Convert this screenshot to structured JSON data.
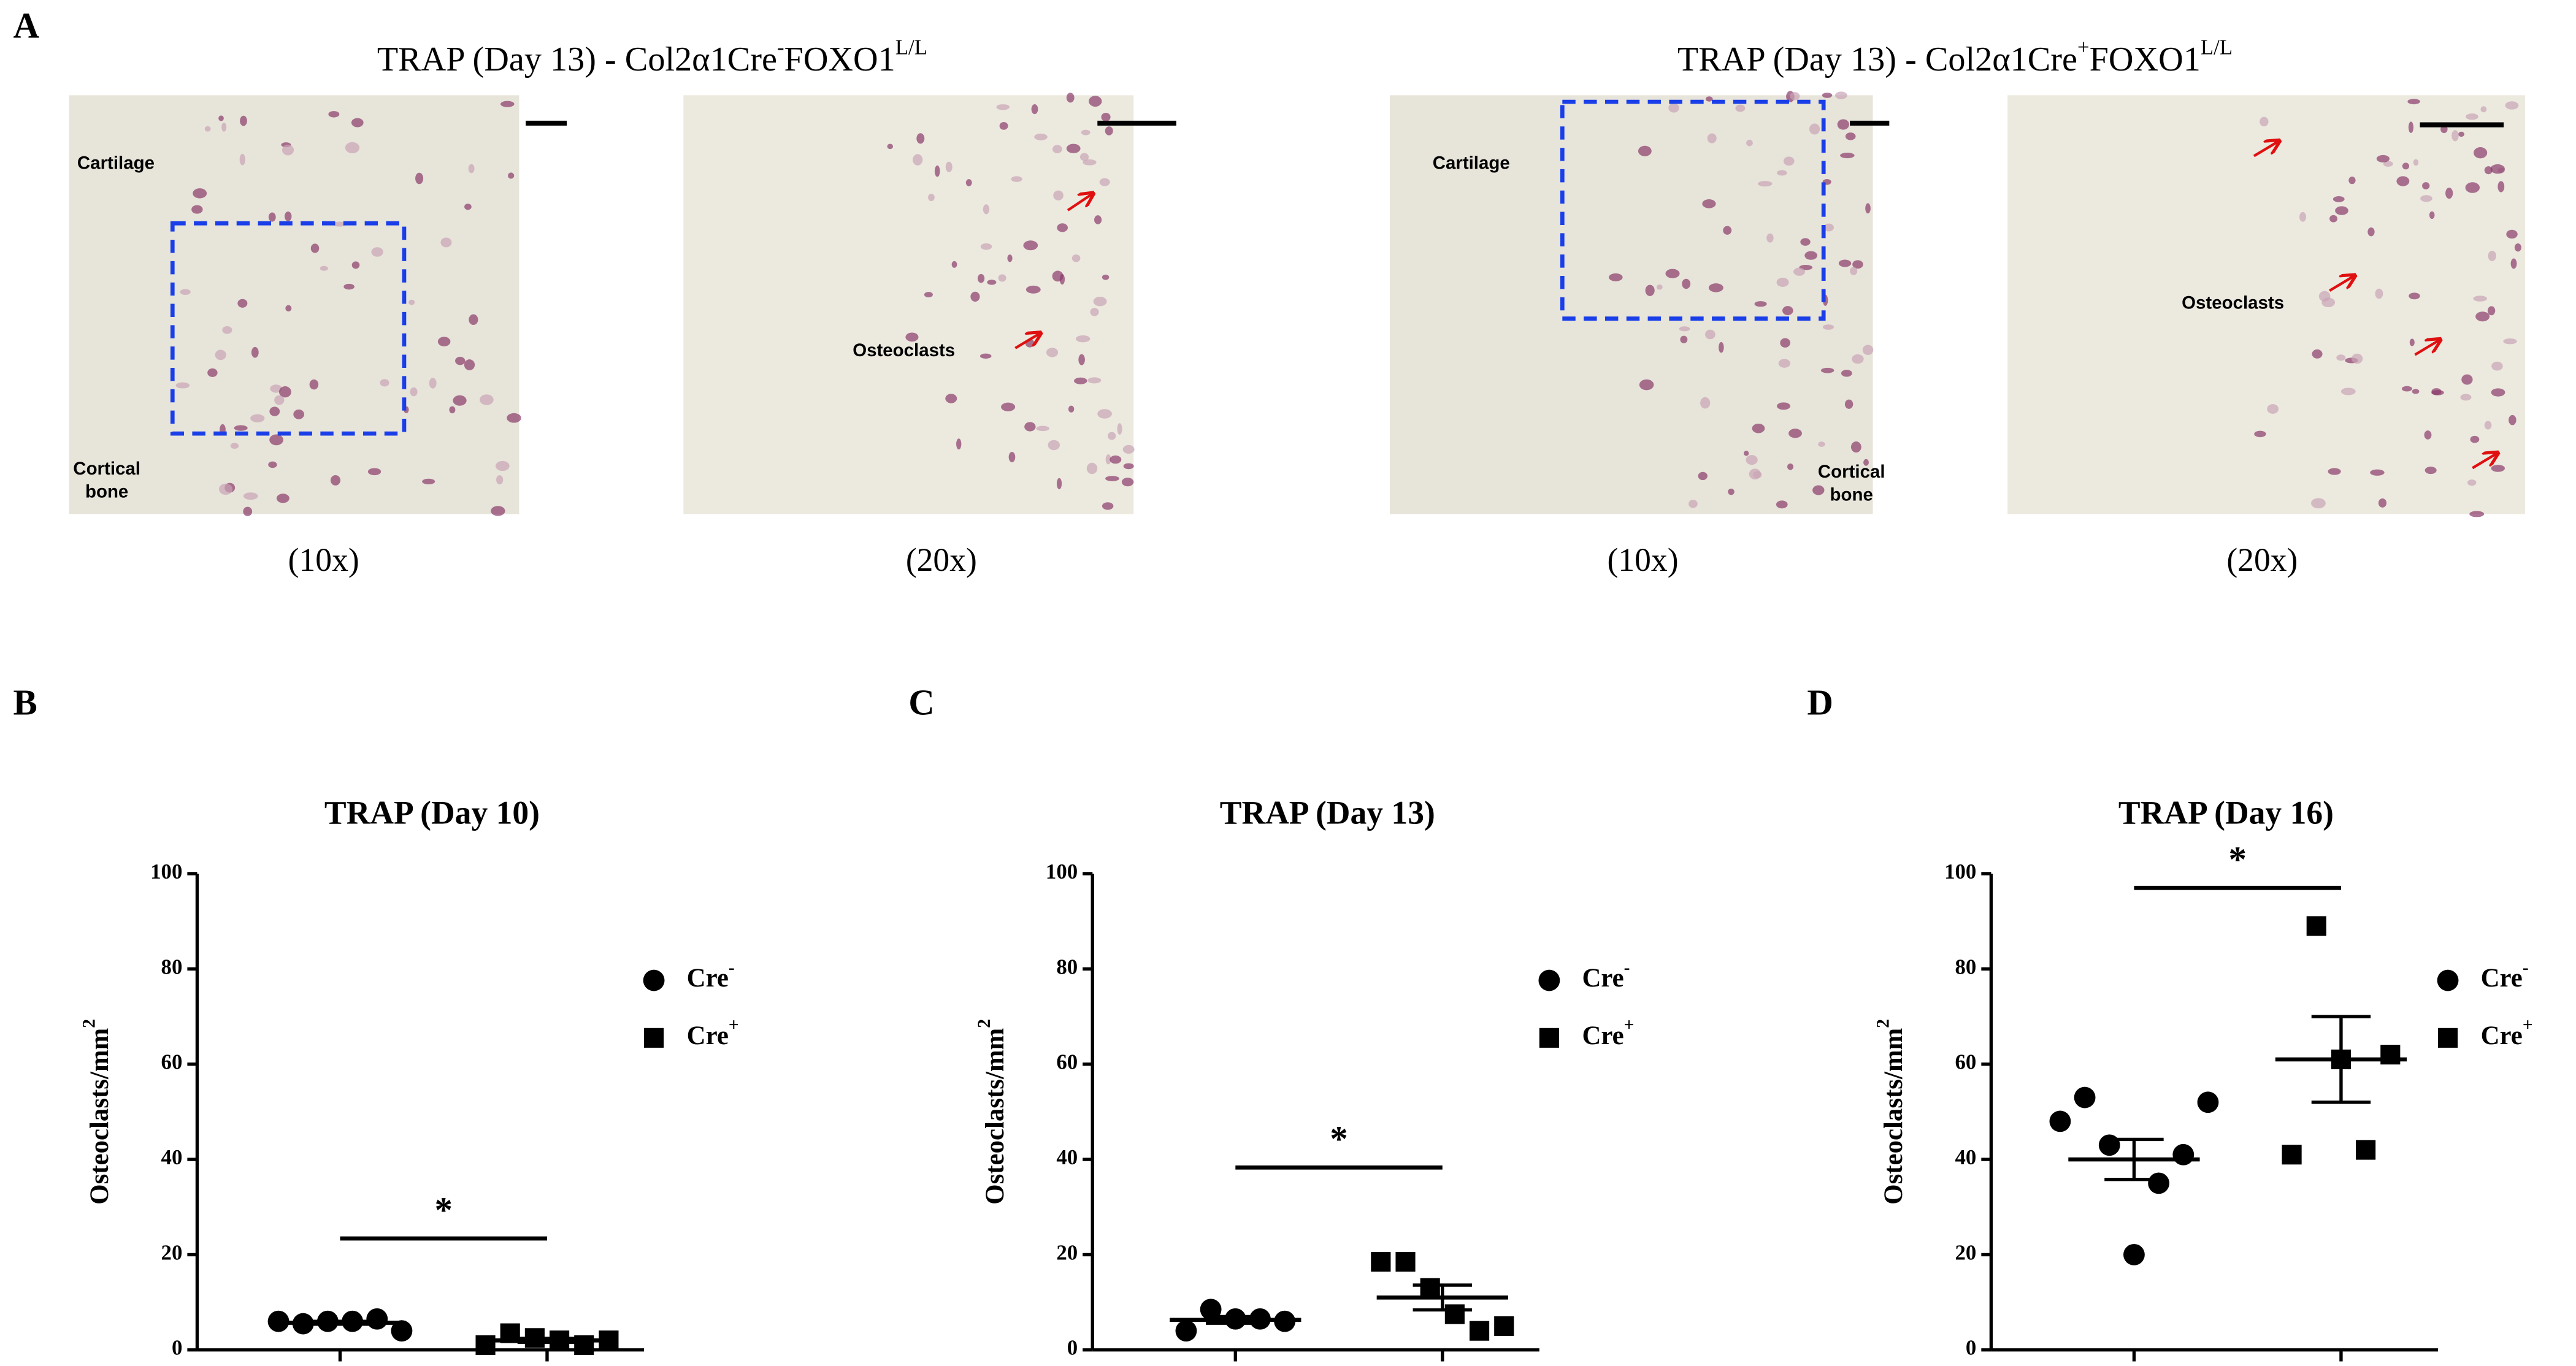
{
  "panel_a": {
    "panel": "A",
    "groups": [
      {
        "title": "TRAP (Day 13) - Col2α1Cre",
        "title_sup1": "-",
        "title_mid": "FOXO1",
        "title_sup2": "L/L",
        "images": [
          {
            "magnification": "(10x)",
            "labels": [
              "Cartilage",
              "Cortical",
              "bone"
            ]
          },
          {
            "magnification": "(20x)",
            "labels": [
              "Osteoclasts"
            ]
          }
        ]
      },
      {
        "title": "TRAP (Day 13) - Col2α1Cre",
        "title_sup1": "+",
        "title_mid": "FOXO1",
        "title_sup2": "L/L",
        "images": [
          {
            "magnification": "(10x)",
            "labels": [
              "Cartilage",
              "Cortical",
              "bone"
            ]
          },
          {
            "magnification": "(20x)",
            "labels": [
              "Osteoclasts"
            ]
          }
        ]
      }
    ]
  },
  "chart_data": [
    {
      "type": "scatter",
      "panel": "B",
      "title": "TRAP (Day 10)",
      "ylabel": "Osteoclasts/mm",
      "ylabel_sup": "2",
      "ylim": [
        0,
        100
      ],
      "yticks": [
        0,
        20,
        40,
        60,
        80,
        100
      ],
      "series": [
        {
          "name": "Cre",
          "superscript": "-",
          "marker": "circle",
          "color": "#000000",
          "values": [
            6,
            5.5,
            6,
            6,
            6.5,
            4
          ],
          "mean": 5.7,
          "sem": 0.3
        },
        {
          "name": "Cre",
          "superscript": "+",
          "marker": "square",
          "color": "#000000",
          "values": [
            1,
            3.5,
            2.5,
            2,
            1,
            2
          ],
          "mean": 2,
          "sem": 0.4
        }
      ],
      "significance": {
        "label": "*",
        "y": 23.4
      }
    },
    {
      "type": "scatter",
      "panel": "C",
      "title": "TRAP (Day 13)",
      "ylabel": "Osteoclasts/mm",
      "ylabel_sup": "2",
      "ylim": [
        0,
        100
      ],
      "yticks": [
        0,
        20,
        40,
        60,
        80,
        100
      ],
      "series": [
        {
          "name": "Cre",
          "superscript": "-",
          "marker": "circle",
          "color": "#000000",
          "values": [
            4,
            8.5,
            6.5,
            6.5,
            6
          ],
          "mean": 6.3,
          "sem": 0.7
        },
        {
          "name": "Cre",
          "superscript": "+",
          "marker": "square",
          "color": "#000000",
          "values": [
            18.5,
            18.5,
            13,
            7.5,
            4,
            5
          ],
          "mean": 11,
          "sem": 2.6
        }
      ],
      "significance": {
        "label": "*",
        "y": 38.3
      }
    },
    {
      "type": "scatter",
      "panel": "D",
      "title": "TRAP (Day 16)",
      "ylabel": "Osteoclasts/mm",
      "ylabel_sup": "2",
      "ylim": [
        0,
        100
      ],
      "yticks": [
        0,
        20,
        40,
        60,
        80,
        100
      ],
      "series": [
        {
          "name": "Cre",
          "superscript": "-",
          "marker": "circle",
          "color": "#000000",
          "values": [
            48,
            53,
            43,
            20,
            35,
            41,
            52
          ],
          "mean": 40,
          "sem": 4.2
        },
        {
          "name": "Cre",
          "superscript": "+",
          "marker": "square",
          "color": "#000000",
          "values": [
            41,
            89,
            61,
            42,
            62
          ],
          "mean": 61,
          "sem": 9
        }
      ],
      "significance": {
        "label": "*",
        "y": 97
      }
    }
  ]
}
